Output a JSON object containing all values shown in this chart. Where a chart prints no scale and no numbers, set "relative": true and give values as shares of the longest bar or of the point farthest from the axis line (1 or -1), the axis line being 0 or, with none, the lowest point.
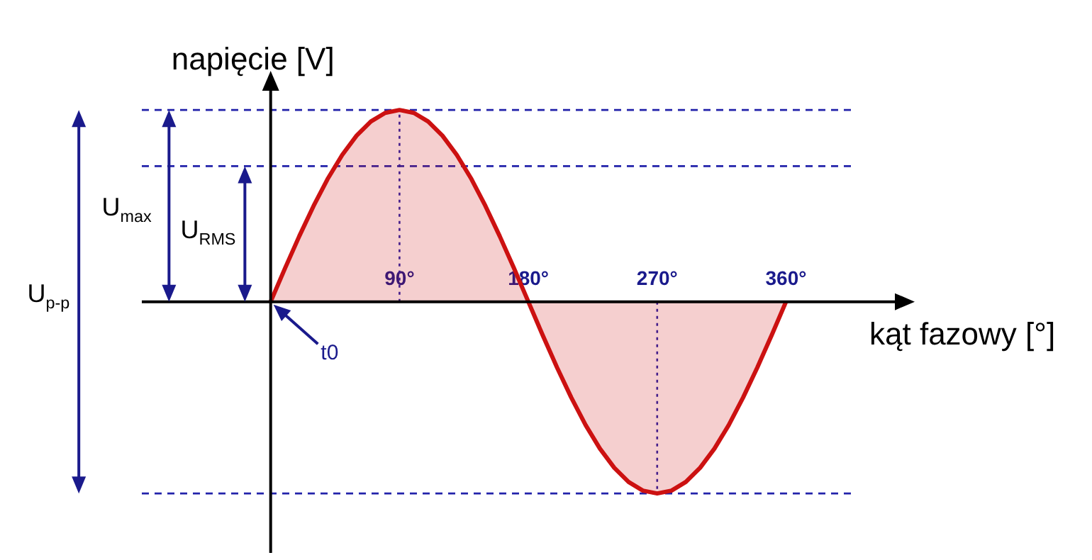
{
  "chart_data": {
    "type": "area",
    "relative": true,
    "xlabel": "kąt fazowy [°]",
    "ylabel": "napięcie [V]",
    "x": [
      0,
      10,
      20,
      30,
      40,
      50,
      60,
      70,
      80,
      90,
      100,
      110,
      120,
      130,
      140,
      150,
      160,
      170,
      180,
      190,
      200,
      210,
      220,
      230,
      240,
      250,
      260,
      270,
      280,
      290,
      300,
      310,
      320,
      330,
      340,
      350,
      360
    ],
    "series": [
      {
        "color": "#cc1111",
        "values": [
          0,
          0.174,
          0.342,
          0.5,
          0.643,
          0.766,
          0.866,
          0.94,
          0.985,
          1,
          0.985,
          0.94,
          0.866,
          0.766,
          0.643,
          0.5,
          0.342,
          0.174,
          0,
          -0.174,
          -0.342,
          -0.5,
          -0.643,
          -0.766,
          -0.866,
          -0.94,
          -0.985,
          -1,
          -0.985,
          -0.94,
          -0.866,
          -0.766,
          -0.643,
          -0.5,
          -0.342,
          -0.174,
          0
        ]
      }
    ],
    "xlim": [
      -90,
      440
    ],
    "xticks": [
      {
        "value": 90,
        "label": "90°"
      },
      {
        "value": 180,
        "label": "180°"
      },
      {
        "value": 270,
        "label": "270°"
      },
      {
        "value": 360,
        "label": "360°"
      }
    ],
    "ref_lines": [
      {
        "axis": "y",
        "value": 1,
        "color": "#2222aa",
        "line_style": "dashed"
      },
      {
        "axis": "y",
        "value": 0.707,
        "color": "#2222aa",
        "line_style": "dashed"
      },
      {
        "axis": "y",
        "value": -1,
        "color": "#2222aa",
        "line_style": "dashed"
      },
      {
        "axis": "x",
        "value": 90,
        "color": "#2222aa",
        "line_style": "dotted"
      },
      {
        "axis": "x",
        "value": 270,
        "color": "#2222aa",
        "line_style": "dotted"
      }
    ],
    "annotations": [
      "U$_{max}$",
      "U$_{RMS}$",
      "U$_{p-p}$",
      "t0"
    ],
    "grid": false,
    "legend": false
  }
}
